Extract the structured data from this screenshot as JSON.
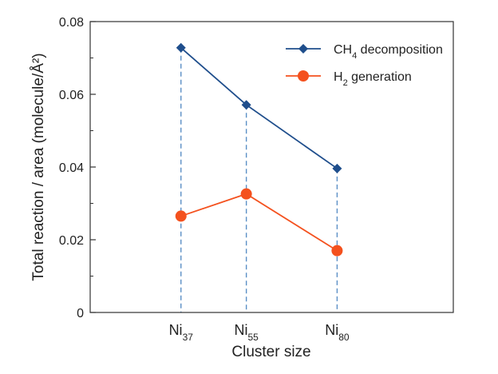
{
  "chart_data": {
    "type": "line",
    "xlabel": "Cluster size",
    "ylabel": "Total reaction / area (molecule/Å²)",
    "categories": [
      {
        "base": "Ni",
        "sub": "37"
      },
      {
        "base": "Ni",
        "sub": "55"
      },
      {
        "base": "Ni",
        "sub": "80"
      }
    ],
    "x": [
      37,
      55,
      80
    ],
    "xlim": [
      12,
      112
    ],
    "ylim": [
      0,
      0.08
    ],
    "yticks": [
      "0",
      "0.02",
      "0.04",
      "0.06",
      "0.08"
    ],
    "grid": false,
    "guide_lines": "dashed vertical drop lines at each cluster size",
    "legend_position": "top-right",
    "series": [
      {
        "name": "CH4 decomposition",
        "legend": {
          "pre": "CH",
          "sub": "4",
          "post": " decomposition"
        },
        "values": [
          0.0728,
          0.0571,
          0.0396
        ],
        "color": "#1f4e8c",
        "marker": "diamond"
      },
      {
        "name": "H2 generation",
        "legend": {
          "pre": "H",
          "sub": "2",
          "post": " generation"
        },
        "values": [
          0.0265,
          0.0326,
          0.017
        ],
        "color": "#f4511e",
        "marker": "circle"
      }
    ],
    "guide_color": "#5b8fc6"
  }
}
